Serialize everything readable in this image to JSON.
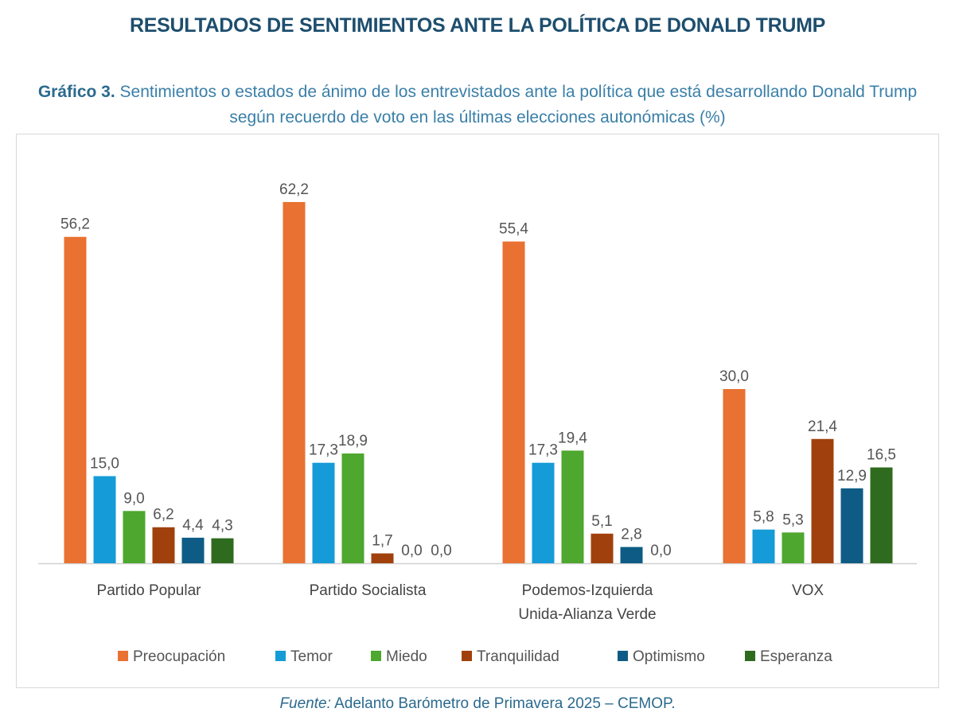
{
  "header": {
    "title": "RESULTADOS DE SENTIMIENTOS ANTE LA POLÍTICA DE DONALD TRUMP"
  },
  "chart_data": {
    "type": "bar",
    "title_label": "Gráfico 3.",
    "title": "Sentimientos o estados de ánimo de los entrevistados ante la política que está desarrollando Donald Trump según recuerdo de voto en las últimas elecciones autonómicas (%)",
    "categories": [
      [
        "Partido Popular"
      ],
      [
        "Partido Socialista"
      ],
      [
        "Podemos-Izquierda",
        "Unida-Alianza Verde"
      ],
      [
        "VOX"
      ]
    ],
    "series": [
      {
        "name": "Preocupación",
        "color": "#e97132",
        "values": [
          56.2,
          62.2,
          55.4,
          30.0
        ],
        "labels": [
          "56,2",
          "62,2",
          "55,4",
          "30,0"
        ]
      },
      {
        "name": "Temor",
        "color": "#159bd7",
        "values": [
          15.0,
          17.3,
          17.3,
          5.8
        ],
        "labels": [
          "15,0",
          "17,3",
          "17,3",
          "5,8"
        ]
      },
      {
        "name": "Miedo",
        "color": "#4ea72e",
        "values": [
          9.0,
          18.9,
          19.4,
          5.3
        ],
        "labels": [
          "9,0",
          "18,9",
          "19,4",
          "5,3"
        ]
      },
      {
        "name": "Tranquilidad",
        "color": "#a0410d",
        "values": [
          6.2,
          1.7,
          5.1,
          21.4
        ],
        "labels": [
          "6,2",
          "1,7",
          "5,1",
          "21,4"
        ]
      },
      {
        "name": "Optimismo",
        "color": "#0e5c85",
        "values": [
          4.4,
          0.0,
          2.8,
          12.9
        ],
        "labels": [
          "4,4",
          "0,0",
          "2,8",
          "12,9"
        ]
      },
      {
        "name": "Esperanza",
        "color": "#2f6b1f",
        "values": [
          4.3,
          0.0,
          0.0,
          16.5
        ],
        "labels": [
          "4,3",
          "0,0",
          "0,0",
          "16,5"
        ]
      }
    ],
    "xlabel": "",
    "ylabel": "",
    "ylim": [
      0,
      65
    ],
    "grid": false,
    "legend": "bottom"
  },
  "footer": {
    "source_label": "Fuente:",
    "source_text": " Adelanto Barómetro de Primavera 2025 – CEMOP."
  }
}
